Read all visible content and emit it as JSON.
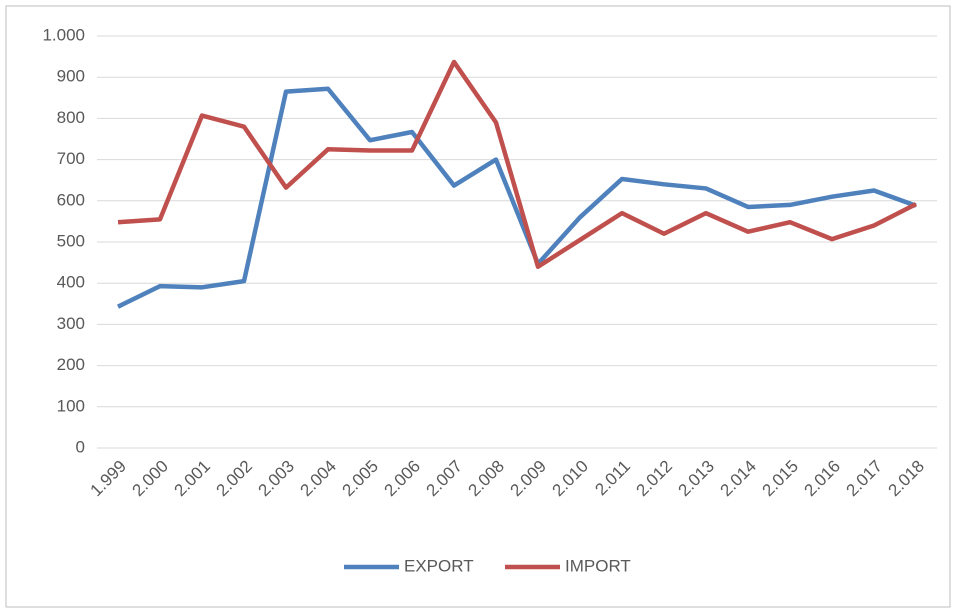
{
  "chart_data": {
    "type": "line",
    "categories": [
      "1.999",
      "2.000",
      "2.001",
      "2.002",
      "2.003",
      "2.004",
      "2.005",
      "2.006",
      "2.007",
      "2.008",
      "2.009",
      "2.010",
      "2.011",
      "2.012",
      "2.013",
      "2.014",
      "2.015",
      "2.016",
      "2.017",
      "2.018"
    ],
    "series": [
      {
        "name": "EXPORT",
        "color": "#4f81bd",
        "values": [
          343,
          393,
          390,
          405,
          865,
          872,
          747,
          767,
          637,
          700,
          447,
          560,
          653,
          640,
          630,
          585,
          590,
          610,
          625,
          588
        ]
      },
      {
        "name": "IMPORT",
        "color": "#c0504d",
        "values": [
          548,
          555,
          807,
          780,
          632,
          725,
          722,
          722,
          937,
          790,
          440,
          505,
          570,
          520,
          570,
          525,
          548,
          507,
          540,
          592
        ]
      }
    ],
    "ylim": [
      0,
      1000
    ],
    "yticks": [
      0,
      100,
      200,
      300,
      400,
      500,
      600,
      700,
      800,
      900,
      {
        "value": 1000,
        "label": "1.000"
      }
    ],
    "grid": true,
    "legend": "bottom"
  }
}
